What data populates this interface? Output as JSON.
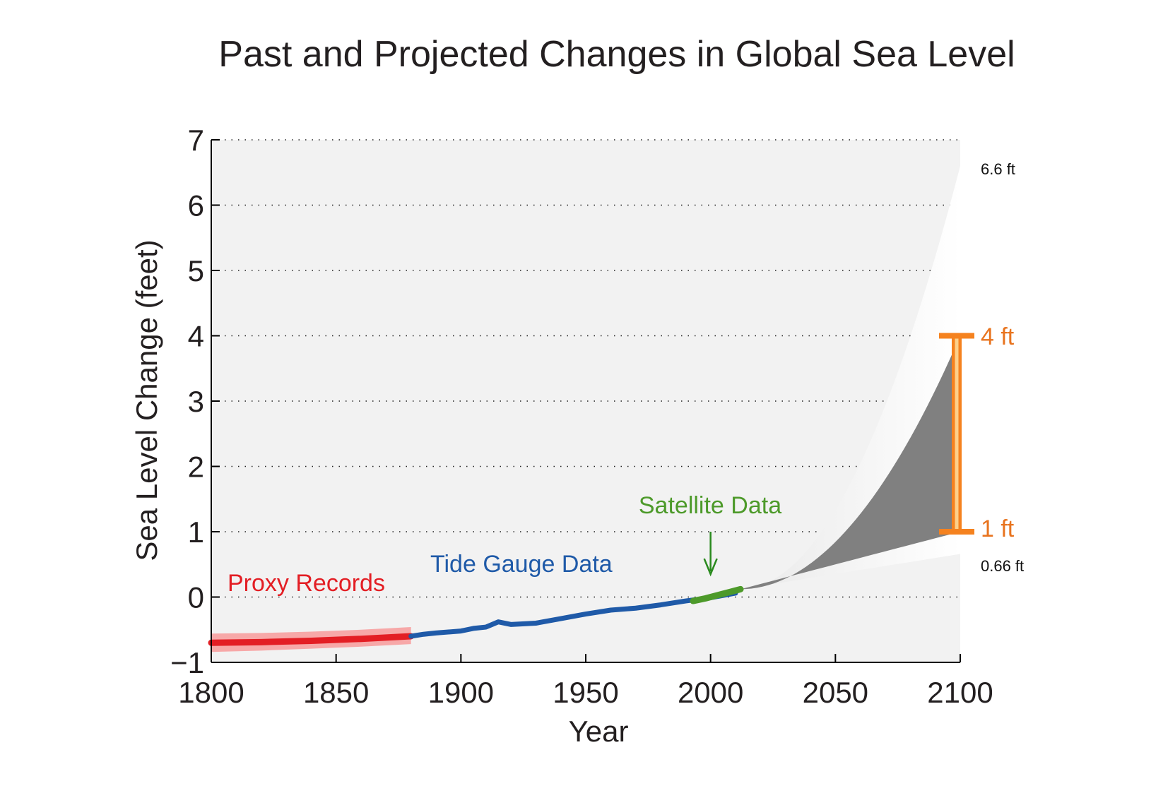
{
  "chart_data": {
    "type": "line",
    "title": "Past and Projected Changes in Global Sea Level",
    "xlabel": "Year",
    "ylabel": "Sea Level Change (feet)",
    "xlim": [
      1800,
      2100
    ],
    "ylim": [
      -1,
      7
    ],
    "xticks": [
      "1800",
      "1850",
      "1900",
      "1950",
      "2000",
      "2050",
      "2100"
    ],
    "yticks": [
      "−1",
      "0",
      "1",
      "2",
      "3",
      "4",
      "5",
      "6",
      "7"
    ],
    "grid": "dotted horizontal",
    "series": [
      {
        "name": "Proxy Records",
        "label": "Proxy Records",
        "color": "#e31e24",
        "band_color": "#f7a8a8",
        "x": [
          1800,
          1820,
          1840,
          1860,
          1880
        ],
        "values": [
          -0.7,
          -0.69,
          -0.67,
          -0.64,
          -0.6
        ],
        "band_low": [
          -0.84,
          -0.82,
          -0.79,
          -0.76,
          -0.72
        ],
        "band_high": [
          -0.56,
          -0.55,
          -0.53,
          -0.5,
          -0.46
        ]
      },
      {
        "name": "Tide Gauge Data",
        "label": "Tide Gauge Data",
        "color": "#1f5aa8",
        "x": [
          1880,
          1885,
          1890,
          1900,
          1905,
          1910,
          1915,
          1920,
          1930,
          1940,
          1950,
          1960,
          1970,
          1980,
          1990,
          2000,
          2010
        ],
        "values": [
          -0.6,
          -0.57,
          -0.55,
          -0.52,
          -0.48,
          -0.46,
          -0.38,
          -0.42,
          -0.4,
          -0.33,
          -0.26,
          -0.2,
          -0.17,
          -0.12,
          -0.06,
          -0.01,
          0.06
        ]
      },
      {
        "name": "Satellite Data",
        "label": "Satellite Data",
        "color": "#4d9a2a",
        "x": [
          1993,
          1998,
          2003,
          2008,
          2012
        ],
        "values": [
          -0.06,
          -0.02,
          0.03,
          0.08,
          0.12
        ]
      }
    ],
    "projection": {
      "start_year": 2012,
      "start_value": 0.12,
      "end_year": 2100,
      "max": 6.6,
      "min": 0.66,
      "likely_high": 4,
      "likely_low": 1,
      "shade_color": "#808080"
    },
    "range_bar": {
      "low": 1,
      "high": 4,
      "color": "#f5821f",
      "inner_color": "#fdd08a"
    },
    "annotations": {
      "max_label": "6.6 ft",
      "min_label": "0.66 ft",
      "high_label": "4 ft",
      "low_label": "1 ft"
    },
    "arrow": {
      "year": 2000,
      "value_from": 1.0,
      "value_to": 0.35
    }
  }
}
